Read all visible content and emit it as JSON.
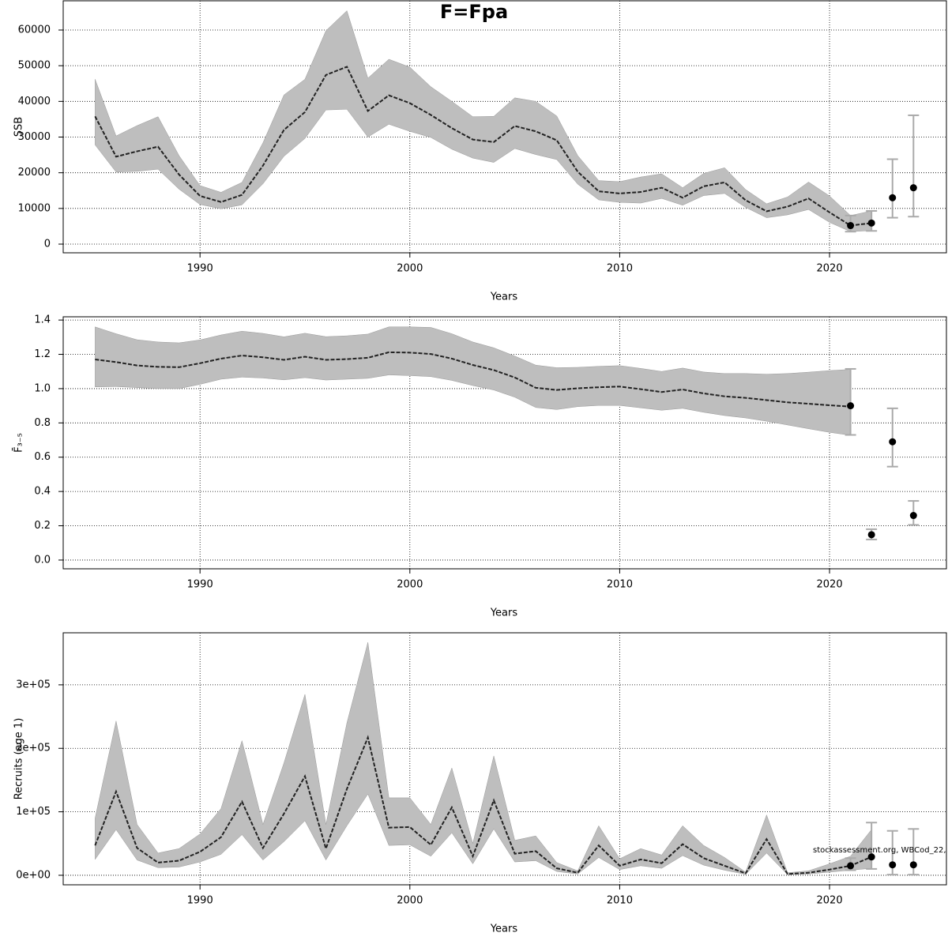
{
  "chart_data": [
    {
      "type": "line",
      "title": "F=Fpa",
      "x_label": "Years",
      "y_label": "SSB",
      "grid": true,
      "color": "#222222",
      "band_color": "#bebebe",
      "interval_color": "#aaaaaa",
      "point_color": "#000000",
      "xlim": [
        1983.48,
        2025.57
      ],
      "xticks": [
        1990,
        2000,
        2010,
        2020
      ],
      "ylim": [
        -2435,
        68190
      ],
      "yticks": [
        0,
        10000,
        20000,
        30000,
        40000,
        50000,
        60000
      ],
      "x": [
        1985,
        1986,
        1987,
        1988,
        1989,
        1990,
        1991,
        1992,
        1993,
        1994,
        1995,
        1996,
        1997,
        1998,
        1999,
        2000,
        2001,
        2002,
        2003,
        2004,
        2005,
        2006,
        2007,
        2008,
        2009,
        2010,
        2011,
        2012,
        2013,
        2014,
        2015,
        2016,
        2017,
        2018,
        2019,
        2020,
        2021,
        2022
      ],
      "values": [
        35800,
        24500,
        26000,
        27300,
        19500,
        13500,
        11800,
        13800,
        22000,
        32000,
        37000,
        47400,
        49700,
        37300,
        41700,
        39500,
        36200,
        32500,
        29300,
        28600,
        33100,
        31600,
        29100,
        20300,
        14800,
        14200,
        14600,
        15800,
        13000,
        16200,
        17300,
        12300,
        9200,
        10500,
        12800,
        8900,
        5200,
        5900
      ],
      "upper": [
        46200,
        30300,
        33200,
        35700,
        24800,
        16400,
        14500,
        17300,
        28400,
        41800,
        46200,
        59800,
        65400,
        46500,
        51800,
        49600,
        44100,
        40000,
        35700,
        35800,
        41000,
        40000,
        35900,
        24800,
        17800,
        17500,
        18800,
        19700,
        15800,
        19800,
        21400,
        15300,
        11300,
        13200,
        17400,
        13500,
        8000,
        9300
      ],
      "lower": [
        27800,
        20200,
        20400,
        21000,
        15400,
        11100,
        9900,
        11000,
        16900,
        24600,
        29600,
        37600,
        37800,
        30000,
        33600,
        31600,
        29900,
        26600,
        24100,
        22900,
        26800,
        25100,
        23700,
        16800,
        12400,
        11700,
        11500,
        12800,
        10900,
        13600,
        14200,
        10300,
        7400,
        8200,
        9700,
        6100,
        3500,
        3800
      ],
      "points": {
        "x": [
          2021,
          2022,
          2023,
          2024
        ],
        "values": [
          5200,
          5900,
          13000,
          15800
        ],
        "lower": [
          3500,
          3700,
          7400,
          7700
        ],
        "upper": [
          8000,
          9300,
          23800,
          36100
        ]
      }
    },
    {
      "type": "line",
      "x_label": "Years",
      "y_label": "F̄₃₋₅",
      "grid": true,
      "color": "#222222",
      "band_color": "#bebebe",
      "interval_color": "#aaaaaa",
      "point_color": "#000000",
      "xlim": [
        1983.48,
        2025.57
      ],
      "xticks": [
        1990,
        2000,
        2010,
        2020
      ],
      "ylim": [
        -0.051,
        1.419
      ],
      "yticks": [
        {
          "value": 0,
          "label": "0.0"
        },
        0.2,
        0.4,
        0.6,
        0.8,
        {
          "value": 1,
          "label": "1.0"
        },
        1.2,
        1.4
      ],
      "x": [
        1985,
        1986,
        1987,
        1988,
        1989,
        1990,
        1991,
        1992,
        1993,
        1994,
        1995,
        1996,
        1997,
        1998,
        1999,
        2000,
        2001,
        2002,
        2003,
        2004,
        2005,
        2006,
        2007,
        2008,
        2009,
        2010,
        2011,
        2012,
        2013,
        2014,
        2015,
        2016,
        2017,
        2018,
        2019,
        2020,
        2021
      ],
      "values": [
        1.17,
        1.155,
        1.135,
        1.127,
        1.125,
        1.148,
        1.175,
        1.193,
        1.183,
        1.168,
        1.186,
        1.168,
        1.172,
        1.18,
        1.212,
        1.21,
        1.202,
        1.175,
        1.138,
        1.108,
        1.065,
        1.005,
        0.992,
        1.002,
        1.008,
        1.012,
        0.997,
        0.98,
        0.995,
        0.972,
        0.955,
        0.946,
        0.933,
        0.92,
        0.912,
        0.903,
        0.895
      ],
      "upper": [
        1.36,
        1.32,
        1.285,
        1.272,
        1.267,
        1.284,
        1.313,
        1.335,
        1.322,
        1.302,
        1.323,
        1.303,
        1.308,
        1.318,
        1.36,
        1.36,
        1.357,
        1.32,
        1.272,
        1.238,
        1.19,
        1.137,
        1.122,
        1.124,
        1.13,
        1.134,
        1.118,
        1.1,
        1.12,
        1.097,
        1.088,
        1.088,
        1.084,
        1.088,
        1.096,
        1.105,
        1.112
      ],
      "lower": [
        1.01,
        1.012,
        1.006,
        1.0,
        1.0,
        1.025,
        1.055,
        1.067,
        1.062,
        1.051,
        1.064,
        1.05,
        1.055,
        1.06,
        1.08,
        1.076,
        1.07,
        1.048,
        1.018,
        0.992,
        0.95,
        0.89,
        0.878,
        0.895,
        0.902,
        0.902,
        0.888,
        0.874,
        0.885,
        0.862,
        0.843,
        0.829,
        0.81,
        0.788,
        0.766,
        0.745,
        0.728
      ],
      "points": {
        "x": [
          2021,
          2022,
          2023,
          2024
        ],
        "values": [
          0.9,
          0.148,
          0.69,
          0.26
        ],
        "lower": [
          0.73,
          0.12,
          0.545,
          0.205
        ],
        "upper": [
          1.115,
          0.18,
          0.885,
          0.345
        ]
      }
    },
    {
      "type": "line",
      "x_label": "Years",
      "y_label": "Recruits (age 1)",
      "grid": true,
      "annotation": "stockassessment.org, WBCod_22,",
      "color": "#222222",
      "band_color": "#bebebe",
      "interval_color": "#aaaaaa",
      "point_color": "#000000",
      "xlim": [
        1983.48,
        2025.57
      ],
      "xticks": [
        1990,
        2000,
        2010,
        2020
      ],
      "ylim": [
        -15000,
        382000
      ],
      "yticks": [
        {
          "value": 0,
          "label": "0e+00"
        },
        {
          "value": 100000,
          "label": "1e+05"
        },
        {
          "value": 200000,
          "label": "2e+05"
        },
        {
          "value": 300000,
          "label": "3e+05"
        }
      ],
      "x": [
        1985,
        1986,
        1987,
        1988,
        1989,
        1990,
        1991,
        1992,
        1993,
        1994,
        1995,
        1996,
        1997,
        1998,
        1999,
        2000,
        2001,
        2002,
        2003,
        2004,
        2005,
        2006,
        2007,
        2008,
        2009,
        2010,
        2011,
        2012,
        2013,
        2014,
        2015,
        2016,
        2017,
        2018,
        2019,
        2020,
        2021,
        2022
      ],
      "values": [
        47000,
        132000,
        43000,
        20000,
        23000,
        37000,
        60000,
        116000,
        43000,
        97000,
        156000,
        42000,
        136000,
        217000,
        75000,
        76000,
        48000,
        107000,
        30000,
        118000,
        34000,
        38000,
        11000,
        4000,
        47000,
        15000,
        25000,
        19000,
        49000,
        27000,
        15000,
        3000,
        57000,
        2000,
        4000,
        9000,
        15000,
        29000
      ],
      "upper": [
        90000,
        243000,
        80000,
        35000,
        42000,
        65000,
        105000,
        212000,
        80000,
        177000,
        285000,
        80000,
        240000,
        367000,
        122000,
        122000,
        80000,
        169000,
        50000,
        188000,
        55000,
        62000,
        20000,
        7000,
        78000,
        26000,
        42000,
        32000,
        78000,
        47000,
        28000,
        5000,
        95000,
        4000,
        7000,
        18000,
        30000,
        72000
      ],
      "lower": [
        25000,
        72000,
        24000,
        12000,
        13000,
        21000,
        33000,
        64000,
        24000,
        53000,
        86000,
        24000,
        78000,
        128000,
        47000,
        48000,
        30000,
        67000,
        18000,
        73000,
        21000,
        23000,
        6000,
        2000,
        28000,
        9000,
        15000,
        11000,
        31000,
        16000,
        8000,
        1500,
        35000,
        1000,
        2000,
        5000,
        8000,
        11000
      ],
      "points": {
        "x": [
          2021,
          2022,
          2023,
          2024
        ],
        "values": [
          15000,
          29000,
          16500,
          16500
        ],
        "lower": [
          8000,
          10000,
          1000,
          1000
        ],
        "upper": [
          27000,
          83000,
          70000,
          73000
        ]
      }
    }
  ]
}
